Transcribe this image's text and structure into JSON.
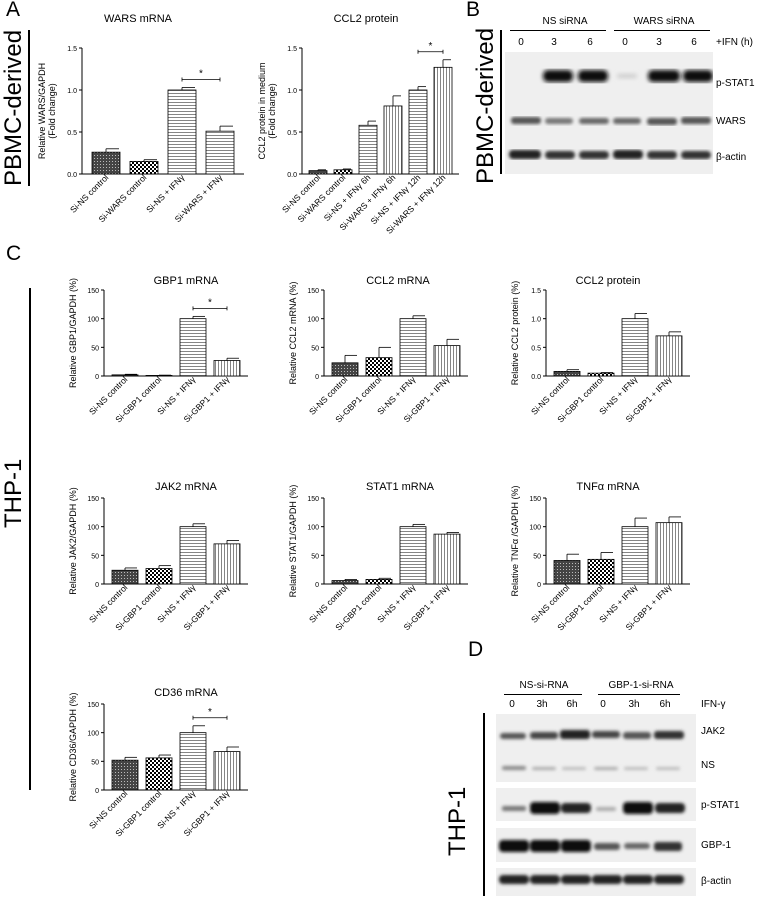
{
  "panels": {
    "A": {
      "letter": "A",
      "side_label": "PBMC-derived",
      "charts": [
        "wars_mrna",
        "ccl2_protein_a"
      ]
    },
    "B": {
      "letter": "B",
      "side_label": "PBMC-derived",
      "groups": [
        "NS siRNA",
        "WARS siRNA"
      ],
      "lanes": [
        "0",
        "3",
        "6",
        "0",
        "3",
        "6"
      ],
      "treatment_label": "+IFN (h)",
      "bands": [
        "p-STAT1",
        "WARS",
        "β-actin"
      ]
    },
    "C": {
      "letter": "C",
      "side_label": "THP-1"
    },
    "D": {
      "letter": "D",
      "side_label": "THP-1",
      "groups": [
        "NS-si-RNA",
        "GBP-1-si-RNA"
      ],
      "lanes": [
        "0",
        "3h",
        "6h",
        "0",
        "3h",
        "6h"
      ],
      "treatment_label": "IFN-γ",
      "bands": [
        "JAK2",
        "NS",
        "p-STAT1",
        "GBP-1",
        "β-actin"
      ]
    }
  },
  "chart_data": [
    {
      "id": "wars_mrna",
      "type": "bar",
      "title": "WARS mRNA",
      "ylabel": [
        "Relative WARS/GAPDH",
        "(Fold change)"
      ],
      "categories": [
        "Si-NS control",
        "Si-WARS control",
        "Si-NS + IFNγ",
        "Si-WARS + IFNγ"
      ],
      "values": [
        0.26,
        0.15,
        1.0,
        0.51
      ],
      "errors": [
        0.04,
        0.02,
        0.03,
        0.06
      ],
      "patterns": [
        "dense",
        "check",
        "hlines",
        "hlines"
      ],
      "ylim": [
        0,
        1.5
      ],
      "yticks": [
        "0.0",
        "0.5",
        "1.0",
        "1.5"
      ],
      "ytick_values": [
        0,
        0.5,
        1.0,
        1.5
      ],
      "significance": {
        "from": 2,
        "to": 3,
        "label": "*"
      }
    },
    {
      "id": "ccl2_protein_a",
      "type": "bar",
      "title": "CCL2 protein",
      "ylabel": [
        "CCL2 protein in medium",
        "(Fold change)"
      ],
      "categories": [
        "Si-NS control",
        "Si-WARS control",
        "Si-NS + IFNγ 6h",
        "Si-WARS + IFNγ 6h",
        "Si-NS + IFNγ 12h",
        "Si-WARS + IFNγ 12h"
      ],
      "values": [
        0.04,
        0.05,
        0.58,
        0.81,
        1.0,
        1.27
      ],
      "errors": [
        0.01,
        0.01,
        0.05,
        0.12,
        0.04,
        0.09
      ],
      "patterns": [
        "dense",
        "check",
        "hlines",
        "vlines",
        "hlines",
        "vlines"
      ],
      "ylim": [
        0,
        1.5
      ],
      "yticks": [
        "0.0",
        "0.5",
        "1.0",
        "1.5"
      ],
      "ytick_values": [
        0,
        0.5,
        1.0,
        1.5
      ],
      "significance": {
        "from": 4,
        "to": 5,
        "label": "*"
      }
    },
    {
      "id": "gbp1_mrna",
      "type": "bar",
      "title": "GBP1 mRNA",
      "ylabel": [
        "Relative GBP1/GAPDH (%)"
      ],
      "categories": [
        "Si-NS control",
        "Si-GBP1 control",
        "Si-NS + IFNγ",
        "Si-GBP1 + IFNγ"
      ],
      "values": [
        2,
        1,
        100,
        27
      ],
      "errors": [
        1,
        0.5,
        4,
        4
      ],
      "patterns": [
        "dense",
        "check",
        "hlines",
        "vlines"
      ],
      "ylim": [
        0,
        150
      ],
      "yticks": [
        "0",
        "50",
        "100",
        "150"
      ],
      "ytick_values": [
        0,
        50,
        100,
        150
      ],
      "significance": {
        "from": 2,
        "to": 3,
        "label": "*"
      }
    },
    {
      "id": "ccl2_mrna",
      "type": "bar",
      "title": "CCL2 mRNA",
      "ylabel": [
        "Relative CCL2 mRNA (%)"
      ],
      "categories": [
        "Si-NS control",
        "Si-GBP1 control",
        "Si-NS + IFNγ",
        "Si-GBP1 + IFNγ"
      ],
      "values": [
        23,
        32,
        100,
        53
      ],
      "errors": [
        13,
        18,
        5,
        11
      ],
      "patterns": [
        "dense",
        "check",
        "hlines",
        "vlines"
      ],
      "ylim": [
        0,
        150
      ],
      "yticks": [
        "0",
        "50",
        "100",
        "150"
      ],
      "ytick_values": [
        0,
        50,
        100,
        150
      ]
    },
    {
      "id": "ccl2_protein_c",
      "type": "bar",
      "title": "CCL2 protein",
      "ylabel": [
        "Relative CCL2 protein (%)"
      ],
      "categories": [
        "Si-NS control",
        "Si-GBP1 control",
        "Si-NS + IFNγ",
        "Si-GBP1 + IFNγ"
      ],
      "values": [
        0.08,
        0.05,
        1.0,
        0.7
      ],
      "errors": [
        0.03,
        0.01,
        0.09,
        0.07
      ],
      "patterns": [
        "dense",
        "check",
        "hlines",
        "vlines"
      ],
      "ylim": [
        0,
        1.5
      ],
      "yticks": [
        "0.0",
        "0.5",
        "1.0",
        "1.5"
      ],
      "ytick_values": [
        0,
        0.5,
        1.0,
        1.5
      ]
    },
    {
      "id": "jak2_mrna",
      "type": "bar",
      "title": "JAK2 mRNA",
      "ylabel": [
        "Relative JAK2/GAPDH (%)"
      ],
      "categories": [
        "Si-NS control",
        "Si-GBP1 control",
        "Si-NS + IFNγ",
        "Si-GBP1 + IFNγ"
      ],
      "values": [
        24,
        27,
        100,
        70
      ],
      "errors": [
        4,
        5,
        5,
        6
      ],
      "patterns": [
        "dense",
        "check",
        "hlines",
        "vlines"
      ],
      "ylim": [
        0,
        150
      ],
      "yticks": [
        "0",
        "50",
        "100",
        "150"
      ],
      "ytick_values": [
        0,
        50,
        100,
        150
      ]
    },
    {
      "id": "stat1_mrna",
      "type": "bar",
      "title": "STAT1 mRNA",
      "ylabel": [
        "Relative STAT1/GAPDH (%)"
      ],
      "categories": [
        "Si-NS control",
        "Si-GBP1 control",
        "Si-NS + IFNγ",
        "Si-GBP1 + IFNγ"
      ],
      "values": [
        6,
        8,
        100,
        87
      ],
      "errors": [
        2,
        2,
        4,
        3
      ],
      "patterns": [
        "dense",
        "check",
        "hlines",
        "vlines"
      ],
      "ylim": [
        0,
        150
      ],
      "yticks": [
        "0",
        "50",
        "100",
        "150"
      ],
      "ytick_values": [
        0,
        50,
        100,
        150
      ]
    },
    {
      "id": "tnfa_mrna",
      "type": "bar",
      "title": "TNFα mRNA",
      "ylabel": [
        "Relative TNFα /GAPDH (%)"
      ],
      "categories": [
        "Si-NS control",
        "Si-GBP1 control",
        "Si-NS + IFNγ",
        "Si-GBP1 + IFNγ"
      ],
      "values": [
        41,
        43,
        100,
        107
      ],
      "errors": [
        11,
        12,
        15,
        10
      ],
      "patterns": [
        "dense",
        "check",
        "hlines",
        "vlines"
      ],
      "ylim": [
        0,
        150
      ],
      "yticks": [
        "0",
        "50",
        "100",
        "150"
      ],
      "ytick_values": [
        0,
        50,
        100,
        150
      ]
    },
    {
      "id": "cd36_mrna",
      "type": "bar",
      "title": "CD36 mRNA",
      "ylabel": [
        "Relative CD36/GAPDH (%)"
      ],
      "categories": [
        "Si-NS control",
        "Si-GBP1 control",
        "Si-NS + IFNγ",
        "Si-GBP1 + IFNγ"
      ],
      "values": [
        52,
        56,
        100,
        67
      ],
      "errors": [
        5,
        5,
        12,
        8
      ],
      "patterns": [
        "dense",
        "check",
        "hlines",
        "vlines"
      ],
      "ylim": [
        0,
        150
      ],
      "yticks": [
        "0",
        "50",
        "100",
        "150"
      ],
      "ytick_values": [
        0,
        50,
        100,
        150
      ],
      "significance": {
        "from": 2,
        "to": 3,
        "label": "*"
      }
    }
  ]
}
